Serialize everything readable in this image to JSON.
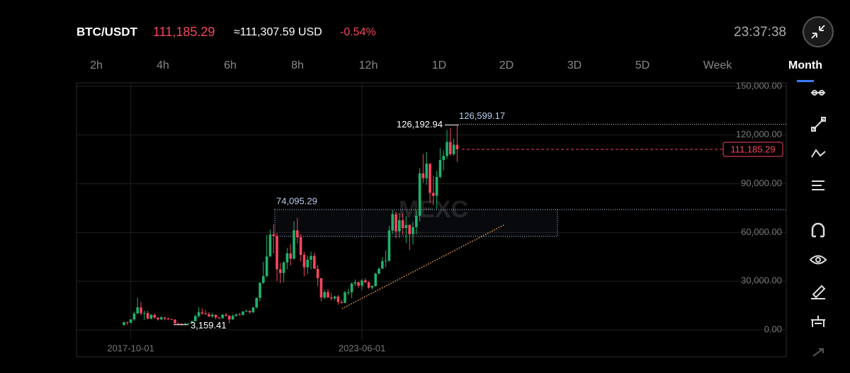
{
  "header": {
    "pair": "BTC/USDT",
    "price": "111,185.29",
    "usd": "≈111,307.59 USD",
    "change": "-0.54%",
    "time": "23:37:38"
  },
  "tabs": [
    "2h",
    "4h",
    "6h",
    "8h",
    "12h",
    "1D",
    "2D",
    "3D",
    "5D",
    "Week",
    "Month"
  ],
  "selected_tab": "Month",
  "chart_data": {
    "type": "candlestick",
    "watermark": "MEXC",
    "categories": [
      null,
      null,
      "2017-10-01",
      null,
      null,
      null,
      null,
      null,
      null,
      null,
      null,
      null,
      null,
      null,
      null,
      null,
      null,
      null,
      null,
      null,
      null,
      null,
      null,
      null,
      null,
      null,
      null,
      null,
      null,
      null,
      null,
      null,
      null,
      null,
      null,
      null,
      null,
      null,
      null,
      null,
      null,
      null,
      null,
      null,
      null,
      null,
      null,
      null,
      null,
      null,
      null,
      null,
      null,
      null,
      null,
      null,
      null,
      null,
      null,
      null,
      null,
      null,
      null,
      null,
      null,
      null,
      null,
      null,
      null,
      null,
      "2023-06-01",
      null,
      null,
      null,
      null,
      null,
      null,
      null,
      null,
      null,
      null,
      null,
      null,
      null,
      null,
      null,
      null,
      null,
      null,
      null,
      null,
      null,
      null,
      null,
      null,
      null,
      null,
      null,
      null
    ],
    "open": [
      2870,
      4700,
      4340,
      6450,
      10000,
      13800,
      10200,
      10300,
      6900,
      9200,
      7500,
      6400,
      7700,
      7000,
      6600,
      6300,
      4000,
      3700,
      3450,
      3800,
      4100,
      5300,
      8500,
      10800,
      10100,
      9600,
      8300,
      9200,
      7600,
      7200,
      9350,
      8600,
      6400,
      8600,
      9450,
      9140,
      11350,
      11650,
      10780,
      13800,
      19700,
      29000,
      33100,
      45200,
      58800,
      57700,
      37300,
      35000,
      41500,
      47100,
      43800,
      61300,
      57000,
      46200,
      38500,
      43200,
      45500,
      37600,
      31800,
      19900,
      23300,
      20050,
      19400,
      20500,
      17150,
      16550,
      23100,
      23150,
      28500,
      29250,
      27200,
      30450,
      29250,
      25950,
      26950,
      34650,
      37700,
      42300,
      42600,
      61200,
      71300,
      60650,
      67500,
      62700,
      64600,
      58950,
      63300,
      70250,
      96400,
      93400,
      102400,
      84350,
      82550,
      94200,
      104600,
      107100,
      115750,
      108200,
      114050
    ],
    "high": [
      4980,
      5000,
      6470,
      11300,
      19800,
      17200,
      11800,
      11700,
      9750,
      10000,
      7800,
      8500,
      7760,
      7400,
      6800,
      6600,
      4300,
      4100,
      4200,
      4150,
      5600,
      9100,
      13800,
      13100,
      12300,
      10950,
      10350,
      9500,
      7750,
      9550,
      10500,
      9200,
      9450,
      10050,
      10400,
      11450,
      12450,
      12050,
      14100,
      19850,
      29300,
      41950,
      58350,
      61800,
      64850,
      59600,
      41300,
      42300,
      50500,
      52900,
      67000,
      69000,
      59050,
      47950,
      45800,
      48200,
      47450,
      39850,
      31950,
      24650,
      25200,
      22800,
      21100,
      21450,
      18400,
      23950,
      25250,
      29200,
      31000,
      29850,
      31400,
      31800,
      30150,
      27500,
      35200,
      38450,
      44700,
      48950,
      64000,
      73800,
      72750,
      71950,
      71950,
      70050,
      65100,
      66500,
      73600,
      99650,
      108350,
      109600,
      102500,
      95000,
      97900,
      111950,
      110500,
      123200,
      124450,
      117900,
      126192.94
    ],
    "low": [
      2850,
      2980,
      4100,
      5500,
      10900,
      9000,
      6000,
      6450,
      6450,
      7030,
      5750,
      6100,
      5880,
      6100,
      6200,
      3600,
      3159.41,
      3400,
      3400,
      3700,
      4100,
      5300,
      7600,
      9200,
      9350,
      7750,
      7300,
      6500,
      6450,
      6850,
      8450,
      3800,
      6200,
      8150,
      8900,
      9000,
      10900,
      9900,
      10400,
      13200,
      17600,
      28100,
      32400,
      45000,
      47000,
      30000,
      28800,
      29300,
      37300,
      39600,
      43300,
      53250,
      42000,
      32900,
      34300,
      37200,
      37700,
      26700,
      17600,
      18800,
      19550,
      18150,
      18200,
      15500,
      16250,
      16500,
      21350,
      19550,
      26950,
      25800,
      24750,
      28850,
      25150,
      24900,
      26550,
      34100,
      37650,
      38550,
      41900,
      59000,
      56500,
      56550,
      58400,
      53500,
      49000,
      52600,
      58900,
      66800,
      90500,
      89250,
      78250,
      76600,
      74400,
      93400,
      98250,
      105300,
      107300,
      107300,
      103500
    ],
    "close": [
      4700,
      4340,
      6450,
      10000,
      13800,
      10200,
      10300,
      6900,
      9200,
      7500,
      6400,
      7700,
      7000,
      6600,
      6300,
      4000,
      3700,
      3450,
      3800,
      4100,
      5300,
      8500,
      10800,
      10100,
      9600,
      8300,
      9200,
      7600,
      7200,
      9350,
      8600,
      6400,
      8600,
      9450,
      9140,
      11350,
      11650,
      10780,
      13800,
      19700,
      29000,
      33100,
      45200,
      58800,
      57700,
      37300,
      35000,
      41500,
      47100,
      43800,
      61300,
      57000,
      46200,
      38500,
      43200,
      45500,
      37600,
      31800,
      19900,
      23300,
      20050,
      19400,
      20500,
      17150,
      16550,
      23100,
      23150,
      28500,
      29250,
      27200,
      30450,
      29250,
      25950,
      26950,
      34650,
      37700,
      42300,
      42600,
      61200,
      71300,
      60650,
      67500,
      62700,
      64600,
      58950,
      63300,
      70250,
      96400,
      93400,
      102400,
      84350,
      82550,
      94200,
      104600,
      107100,
      115750,
      108200,
      114050,
      111185.29
    ],
    "up_color": "#20b26c",
    "down_color": "#f6465d",
    "ylim": [
      0,
      150000
    ],
    "yticks": [
      {
        "value": 0,
        "label": "0.00"
      },
      {
        "value": 30000,
        "label": "30,000.00"
      },
      {
        "value": 60000,
        "label": "60,000.00"
      },
      {
        "value": 90000,
        "label": "90,000.00"
      },
      {
        "value": 120000,
        "label": "120,000.00"
      },
      {
        "value": 150000,
        "label": "150,000.00"
      }
    ],
    "grid": true,
    "max_price": {
      "value": 126192.94,
      "label": "126,192.94"
    },
    "high_line": {
      "value": 126599.17,
      "label": "126,599.17"
    },
    "zone": {
      "top": {
        "value": 74095.29,
        "label": "74,095.29"
      },
      "bottom": 57560
    },
    "min_price": {
      "value": 3159.41,
      "label": "3,159.41"
    },
    "last_price": {
      "value": 111185.29,
      "label": "111,185.29"
    },
    "trendline": [
      13080,
      64970
    ]
  }
}
